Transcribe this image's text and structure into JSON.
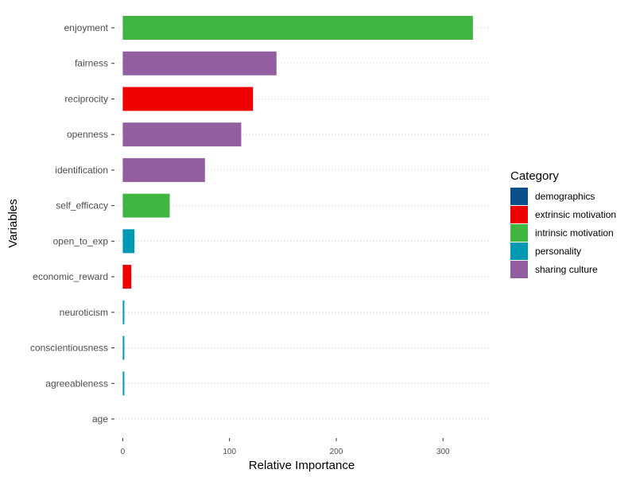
{
  "chart_data": {
    "type": "bar",
    "orientation": "horizontal",
    "categories": [
      "enjoyment",
      "fairness",
      "reciprocity",
      "openness",
      "identification",
      "self_efficacy",
      "open_to_exp",
      "economic_reward",
      "neuroticism",
      "conscientiousness",
      "agreeableness",
      "age"
    ],
    "values": [
      328,
      144,
      122,
      111,
      77,
      44,
      11,
      8,
      1.5,
      1.5,
      1.5,
      0
    ],
    "category_group": [
      "intrinsic motivation",
      "sharing culture",
      "extrinsic motivation",
      "sharing culture",
      "sharing culture",
      "intrinsic motivation",
      "personality",
      "extrinsic motivation",
      "personality",
      "personality",
      "personality",
      "demographics"
    ],
    "title": "",
    "xlabel": "Relative Importance",
    "ylabel": "Variables",
    "xlim": [
      -7,
      343
    ],
    "xticks": [
      0,
      100,
      200,
      300
    ],
    "grid": "horizontal dotted",
    "legend": {
      "title": "Category",
      "placement": "right",
      "entries": [
        {
          "name": "demographics",
          "color": "#0b4f8a"
        },
        {
          "name": "extrinsic motivation",
          "color": "#ee0000"
        },
        {
          "name": "intrinsic motivation",
          "color": "#41b541"
        },
        {
          "name": "personality",
          "color": "#0099b4"
        },
        {
          "name": "sharing culture",
          "color": "#925e9f"
        }
      ]
    }
  }
}
